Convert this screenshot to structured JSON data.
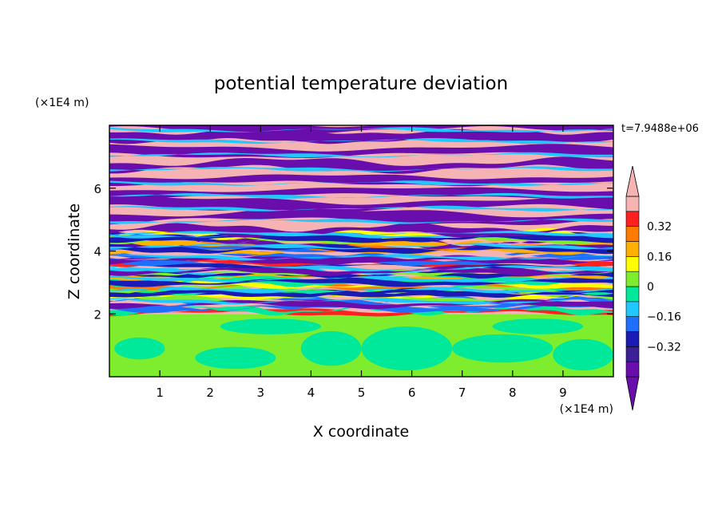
{
  "chart_data": {
    "type": "heatmap",
    "title": "potential temperature deviation",
    "xlabel": "X coordinate",
    "ylabel": "Z coordinate",
    "x_unit": "(×1E4 m)",
    "y_unit": "(×1E4 m)",
    "time_label": "t=7.9488e+06",
    "xlim": [
      0,
      10
    ],
    "ylim": [
      0,
      8
    ],
    "x_ticks": [
      "1",
      "2",
      "3",
      "4",
      "5",
      "6",
      "7",
      "8",
      "9"
    ],
    "y_ticks": [
      "2",
      "4",
      "6"
    ],
    "grid": false,
    "colorbar": {
      "position": "right",
      "levels": [
        -0.48,
        -0.4,
        -0.32,
        -0.24,
        -0.16,
        -0.08,
        0,
        0.08,
        0.16,
        0.24,
        0.32,
        0.4,
        0.48
      ],
      "tick_labels": [
        "0.32",
        "0.16",
        "0",
        "−0.16",
        "−0.32"
      ],
      "tick_values": [
        0.32,
        0.16,
        0,
        -0.16,
        -0.32
      ],
      "colors": [
        "#6a0dad",
        "#3b1f96",
        "#1a1ab4",
        "#1f6fff",
        "#20c8ff",
        "#00e89a",
        "#7ded2e",
        "#ffff00",
        "#ffb000",
        "#ff7a00",
        "#ff2020",
        "#f5b3b3"
      ],
      "extend": "both"
    },
    "layers": [
      {
        "z_range": [
          0,
          2
        ],
        "dominant": "#7ded2e",
        "secondary": "#00e89a"
      },
      {
        "z_range": [
          2,
          4.5
        ],
        "dominant": "mixed",
        "note": "interleaved positive/negative bands"
      },
      {
        "z_range": [
          4.5,
          8
        ],
        "dominant": "bands",
        "colors": [
          "#f5b3b3",
          "#6a0dad"
        ]
      }
    ]
  }
}
